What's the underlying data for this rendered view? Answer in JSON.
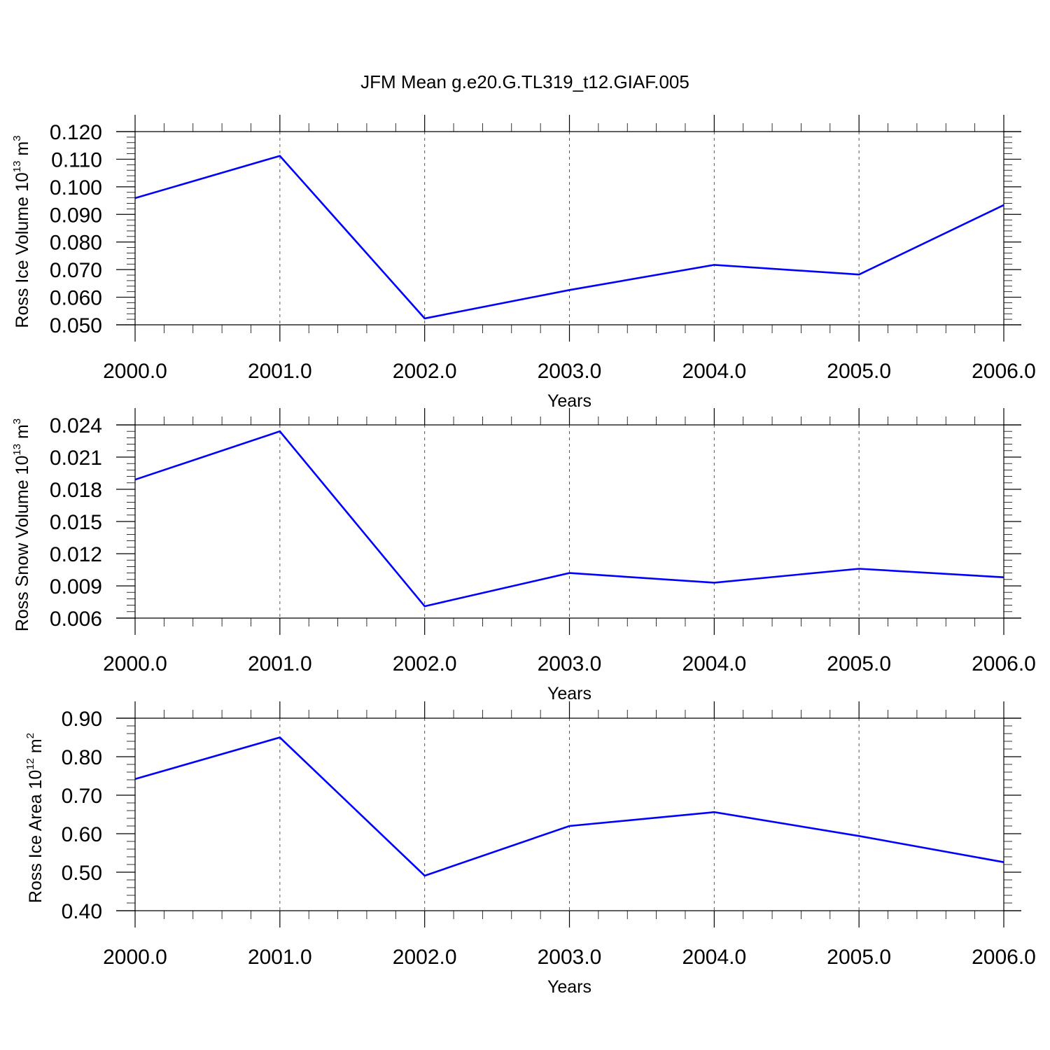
{
  "figure": {
    "title": "JFM Mean g.e20.G.TL319_t12.GIAF.005"
  },
  "chart_data": [
    {
      "type": "line",
      "title": "",
      "xlabel": "Years",
      "ylabel": "Ross Ice Volume 10",
      "ylabel_exponent": "13",
      "ylabel_unit": " m",
      "ylabel_unit_exponent": "3",
      "x": [
        2000,
        2001,
        2002,
        2003,
        2004,
        2005,
        2006
      ],
      "x_tick_labels": [
        "2000.0",
        "2001.0",
        "2002.0",
        "2003.0",
        "2004.0",
        "2005.0",
        "2006.0"
      ],
      "y_tick_values": [
        0.05,
        0.06,
        0.07,
        0.08,
        0.09,
        0.1,
        0.11,
        0.12
      ],
      "y_tick_labels": [
        "0.050",
        "0.060",
        "0.070",
        "0.080",
        "0.090",
        "0.100",
        "0.110",
        "0.120"
      ],
      "ylim": [
        0.05,
        0.12
      ],
      "series": [
        {
          "values": [
            0.0959,
            0.1112,
            0.0523,
            0.0626,
            0.0717,
            0.0682,
            0.0934
          ]
        }
      ],
      "line_color": "#0000ff",
      "vertical_grid": "dashed at major x ticks"
    },
    {
      "type": "line",
      "title": "",
      "xlabel": "Years",
      "ylabel": "Ross Snow Volume 10",
      "ylabel_exponent": "13",
      "ylabel_unit": " m",
      "ylabel_unit_exponent": "3",
      "x": [
        2000,
        2001,
        2002,
        2003,
        2004,
        2005,
        2006
      ],
      "x_tick_labels": [
        "2000.0",
        "2001.0",
        "2002.0",
        "2003.0",
        "2004.0",
        "2005.0",
        "2006.0"
      ],
      "y_tick_values": [
        0.006,
        0.009,
        0.012,
        0.015,
        0.018,
        0.021,
        0.024
      ],
      "y_tick_labels": [
        "0.006",
        "0.009",
        "0.012",
        "0.015",
        "0.018",
        "0.021",
        "0.024"
      ],
      "ylim": [
        0.006,
        0.024
      ],
      "series": [
        {
          "values": [
            0.0189,
            0.0234,
            0.0071,
            0.0102,
            0.0093,
            0.0106,
            0.0098
          ]
        }
      ],
      "line_color": "#0000ff",
      "vertical_grid": "dashed at major x ticks"
    },
    {
      "type": "line",
      "title": "",
      "xlabel": "Years",
      "ylabel": "Ross Ice Area 10",
      "ylabel_exponent": "12",
      "ylabel_unit": " m",
      "ylabel_unit_exponent": "2",
      "x": [
        2000,
        2001,
        2002,
        2003,
        2004,
        2005,
        2006
      ],
      "x_tick_labels": [
        "2000.0",
        "2001.0",
        "2002.0",
        "2003.0",
        "2004.0",
        "2005.0",
        "2006.0"
      ],
      "y_tick_values": [
        0.4,
        0.5,
        0.6,
        0.7,
        0.8,
        0.9
      ],
      "y_tick_labels": [
        "0.40",
        "0.50",
        "0.60",
        "0.70",
        "0.80",
        "0.90"
      ],
      "ylim": [
        0.4,
        0.9
      ],
      "series": [
        {
          "values": [
            0.742,
            0.85,
            0.491,
            0.62,
            0.656,
            0.594,
            0.526
          ]
        }
      ],
      "line_color": "#0000ff",
      "vertical_grid": "dashed at major x ticks"
    }
  ]
}
